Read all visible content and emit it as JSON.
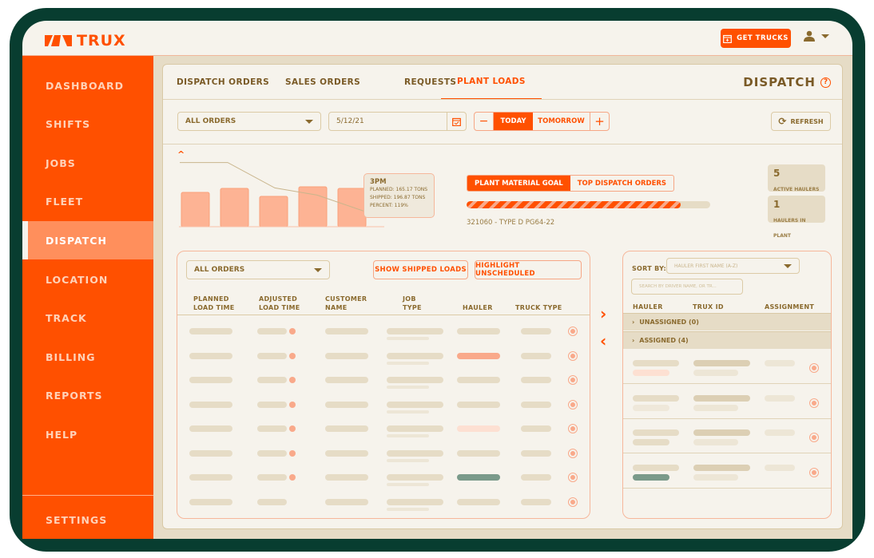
{
  "header": {
    "logo": "TRUX",
    "get_trucks": "GET TRUCKS"
  },
  "sidebar": {
    "items": [
      "DASHBOARD",
      "SHIFTS",
      "JOBS",
      "FLEET",
      "DISPATCH",
      "LOCATION",
      "TRACK",
      "BILLING",
      "REPORTS",
      "HELP"
    ],
    "settings": "SETTINGS",
    "active": "DISPATCH"
  },
  "tabs": [
    "DISPATCH ORDERS",
    "SALES ORDERS",
    "REQUESTS",
    "PLANT LOADS"
  ],
  "active_tab": "PLANT LOADS",
  "page_title": "DISPATCH",
  "filters": {
    "orders": "ALL ORDERS",
    "date": "5/12/21",
    "today": "TODAY",
    "tomorrow": "TOMORROW",
    "refresh": "REFRESH"
  },
  "mini_chart": {
    "bars": [
      43,
      48,
      38,
      50,
      48
    ],
    "line": [
      134,
      134,
      81,
      66,
      22
    ],
    "tooltip": {
      "title": "3PM",
      "planned": "PLANNED: 165.17 TONS",
      "shipped": "SHIPPED: 196.87 TONS",
      "percent": "PERCENT: 119%"
    }
  },
  "goal": {
    "tab_active": "PLANT MATERIAL GOAL",
    "tab_other": "TOP DISPATCH ORDERS",
    "progress": 0.88,
    "label": "321060 - TYPE D PG64-22"
  },
  "stats": [
    {
      "value": "5",
      "label": "ACTIVE HAULERS"
    },
    {
      "value": "1",
      "label": "HAULERS IN PLANT"
    }
  ],
  "loads": {
    "filter": "ALL ORDERS",
    "show_shipped": "SHOW SHIPPED LOADS",
    "highlight": "HIGHLIGHT UNSCHEDULED",
    "columns": [
      [
        "PLANNED",
        "LOAD TIME"
      ],
      [
        "ADJUSTED",
        "LOAD TIME"
      ],
      [
        "CUSTOMER",
        "NAME"
      ],
      [
        "JOB",
        "TYPE"
      ],
      [
        "",
        "HAULER"
      ],
      [
        "",
        "TRUCK TYPE"
      ]
    ],
    "row_count": 8,
    "hauler_highlights": {
      "1": "#f9a98a",
      "4": "#fde0d2",
      "6": "#7a9a8a"
    }
  },
  "haulers": {
    "sort_label": "SORT BY:",
    "sort_value": "HAULER FIRST NAME (A-Z)",
    "search_placeholder": "SEARCH BY DRIVER NAME, OR TR...",
    "columns": [
      "HAULER",
      "TRUX ID",
      "ASSIGNMENT"
    ],
    "unassigned": "UNASSIGNED (0)",
    "assigned": "ASSIGNED (4)",
    "row_count": 4
  },
  "colors": {
    "brand": "#ff5000",
    "frame": "#083d30",
    "text": "#8a6a2e"
  }
}
